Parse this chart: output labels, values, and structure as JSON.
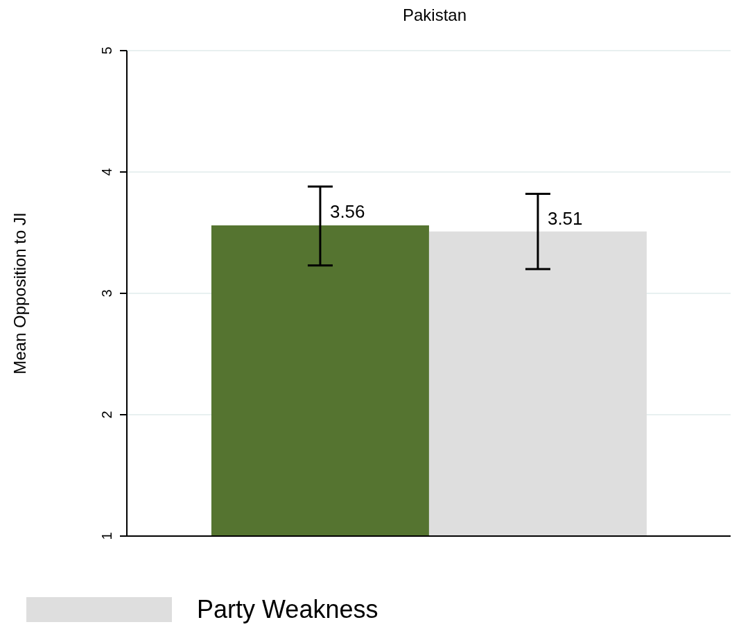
{
  "chart_data": {
    "type": "bar",
    "title": "Pakistan",
    "ylabel": "Mean Opposition to JI",
    "categories": [
      null
    ],
    "series": [
      {
        "color": "#557430",
        "values": [
          3.56
        ],
        "errors": [
          [
            3.23,
            3.88
          ]
        ]
      },
      {
        "name": "Party Weakness",
        "color": "#dedede",
        "values": [
          3.51
        ],
        "errors": [
          [
            3.2,
            3.82
          ]
        ]
      }
    ],
    "ylim": [
      1,
      5
    ],
    "yticks": [
      1,
      2,
      3,
      4,
      5
    ],
    "grid": "y",
    "legend": "bottom",
    "data_labels": true
  }
}
